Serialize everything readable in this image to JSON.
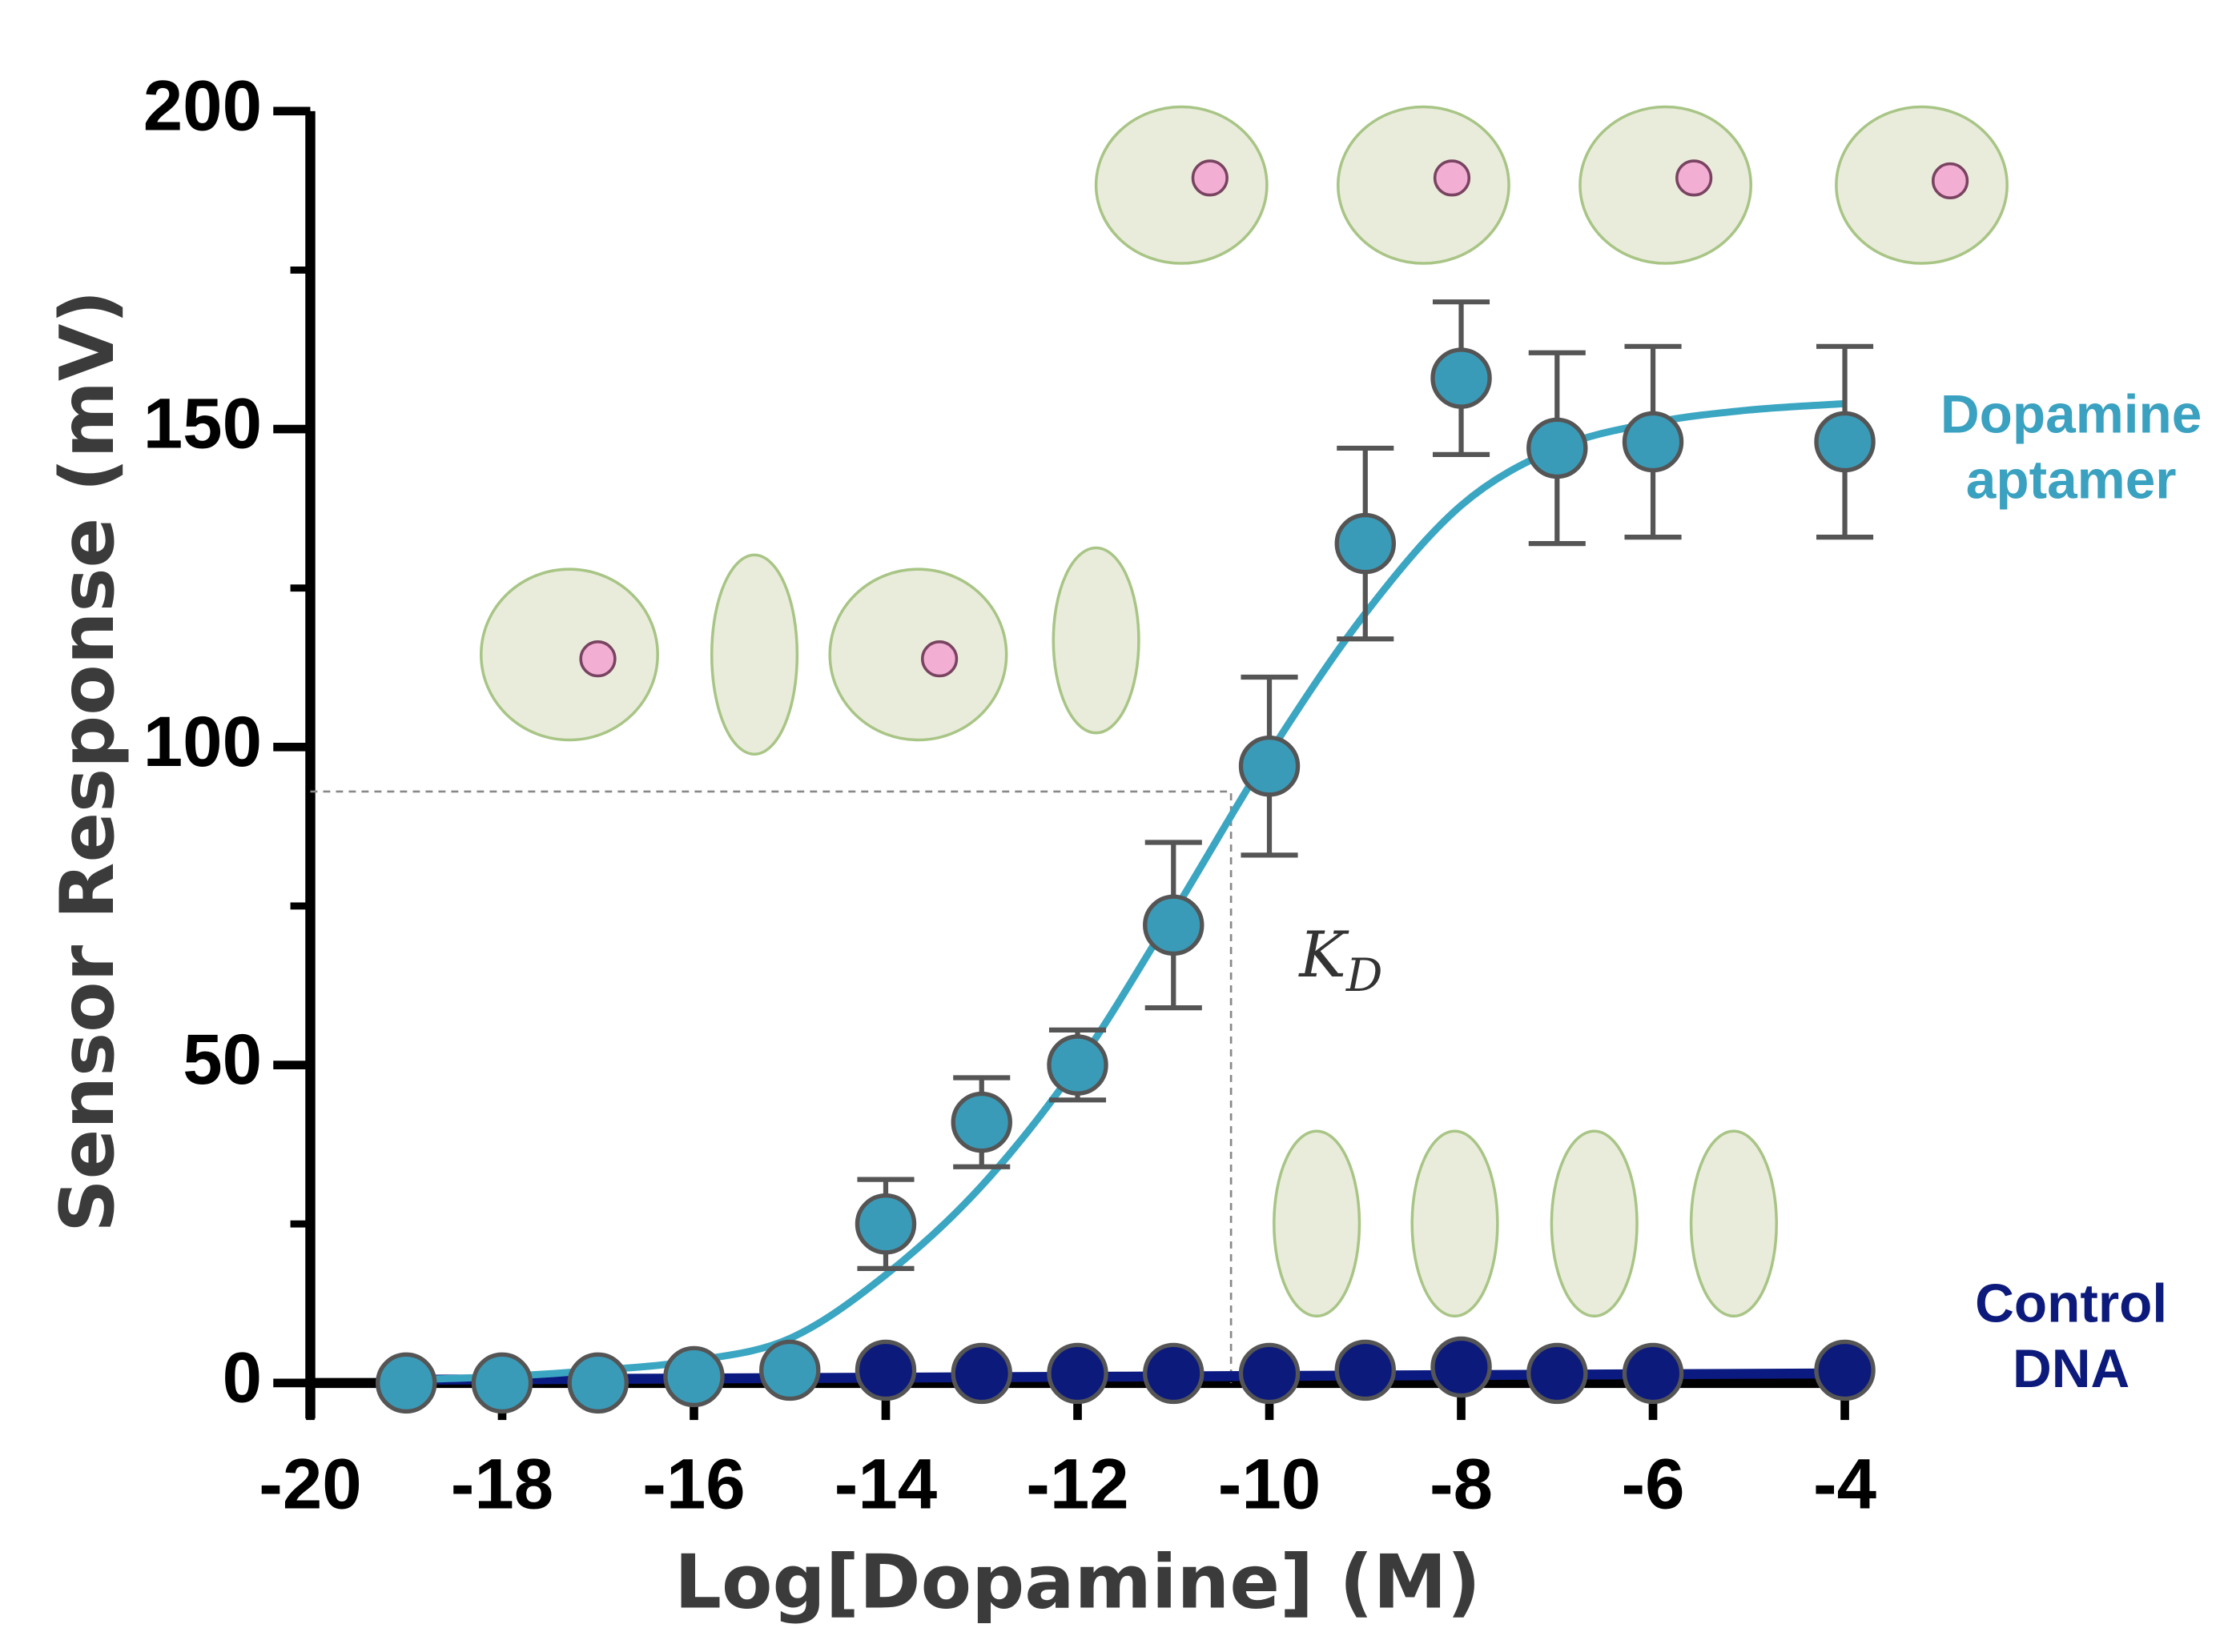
{
  "chart_data": {
    "type": "scatter",
    "x_label": "Log[Dopamine] (M)",
    "y_label": "Sensor Response (mV)",
    "xlim": [
      -20,
      -4
    ],
    "xticks": [
      -20,
      -18,
      -16,
      -14,
      -12,
      -10,
      -8,
      -6,
      -4
    ],
    "ylim": [
      0,
      200
    ],
    "yticks": [
      0,
      50,
      100,
      150,
      200
    ],
    "yminorticks": [
      25,
      75,
      125,
      175
    ],
    "series": [
      {
        "name": "Dopamine aptamer",
        "color": "#3a9bb8",
        "line_color": "#3ba6c2",
        "x": [
          -19,
          -18,
          -17,
          -16,
          -15,
          -14,
          -13,
          -12,
          -11,
          -10,
          -9,
          -8,
          -7,
          -6,
          -4
        ],
        "values": [
          0,
          0,
          0,
          1,
          2,
          25,
          41,
          50,
          72,
          97,
          132,
          158,
          147,
          148,
          148
        ],
        "errors": [
          null,
          null,
          null,
          null,
          null,
          7,
          7,
          5.5,
          13,
          14,
          15,
          12,
          15,
          15,
          15
        ],
        "fit_x": [
          -19,
          -18,
          -17,
          -16,
          -15,
          -14,
          -13,
          -12,
          -11,
          -10,
          -9,
          -8,
          -7,
          -6,
          -5,
          -4
        ],
        "fit_values": [
          0.5,
          1,
          2,
          3.5,
          7,
          17,
          31,
          50,
          74,
          99,
          121,
          138,
          147,
          151,
          153,
          154
        ]
      },
      {
        "name": "Control DNA",
        "color": "#0c1a7c",
        "line_color": "#0b1a80",
        "x": [
          -14,
          -13,
          -12,
          -11,
          -10,
          -9,
          -8,
          -7,
          -6,
          -4
        ],
        "values": [
          2,
          1.5,
          1.5,
          1.5,
          1.5,
          2,
          2.5,
          1.5,
          1.5,
          2
        ],
        "fit_x": [
          -19,
          -4
        ],
        "fit_values": [
          0.5,
          1.5
        ]
      }
    ],
    "kd": {
      "x": -10.4,
      "y": 93,
      "label": "K",
      "subscript": "D"
    }
  }
}
